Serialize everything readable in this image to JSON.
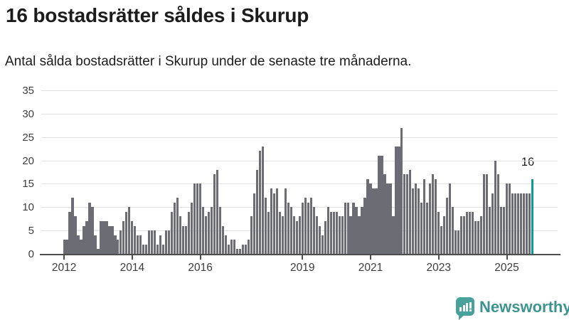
{
  "title": "16 bostadsrätter såldes i Skurup",
  "subtitle": "Antal sålda bostadsrätter i Skurup under de senaste tre månaderna.",
  "annotation": {
    "label": "16"
  },
  "branding": {
    "name": "Newsworthy"
  },
  "colors": {
    "bar": "#6c6c74",
    "highlight": "#0c9b9b",
    "gridline": "#e2e2e2",
    "axis": "#4d4d4d",
    "text": "#1c1c1c",
    "brand_teal": "#3d948e"
  },
  "chart_data": {
    "type": "bar",
    "title": "16 bostadsrätter såldes i Skurup",
    "subtitle": "Antal sålda bostadsrätter i Skurup under de senaste tre månaderna.",
    "ylabel": "",
    "xlabel": "",
    "ylim": [
      0,
      35
    ],
    "grid": true,
    "y_ticks": [
      0,
      5,
      10,
      15,
      20,
      25,
      30,
      35
    ],
    "x_tick_labels": [
      "2012",
      "2014",
      "2016",
      "2019",
      "2021",
      "2023",
      "2025"
    ],
    "x_tick_month_index": [
      0,
      24,
      48,
      84,
      108,
      132,
      156
    ],
    "start_month": "2012-01",
    "end_month": "2025-10",
    "highlight_index": 165,
    "highlight_value": 16,
    "highlight_label": "16",
    "values": [
      3,
      3,
      9,
      12,
      8,
      4,
      3,
      6,
      7,
      11,
      10,
      4,
      1,
      7,
      7,
      7,
      6,
      6,
      4,
      3,
      5,
      7,
      9,
      10,
      7,
      6,
      4,
      4,
      2,
      2,
      5,
      5,
      5,
      2,
      4,
      2,
      5,
      5,
      9,
      11,
      12,
      8,
      6,
      6,
      9,
      11,
      15,
      15,
      15,
      10,
      8,
      9,
      10,
      17,
      18,
      10,
      6,
      4,
      2,
      3,
      3,
      1,
      1,
      2,
      2,
      3,
      8,
      13,
      18,
      22,
      23,
      12,
      9,
      14,
      13,
      14,
      9,
      8,
      14,
      11,
      10,
      8,
      7,
      8,
      11,
      12,
      11,
      12,
      10,
      8,
      6,
      4,
      7,
      10,
      9,
      9,
      9,
      8,
      8,
      11,
      11,
      8,
      11,
      10,
      8,
      10,
      12,
      16,
      15,
      14,
      14,
      21,
      21,
      17,
      15,
      15,
      8,
      23,
      23,
      27,
      17,
      17,
      18,
      14,
      15,
      14,
      11,
      16,
      11,
      15,
      17,
      16,
      9,
      6,
      8,
      12,
      15,
      10,
      5,
      5,
      8,
      8,
      9,
      9,
      9,
      7,
      7,
      8,
      17,
      17,
      10,
      13,
      20,
      17,
      10,
      10,
      15,
      15,
      13,
      13,
      13,
      13,
      13,
      13,
      13,
      16
    ]
  }
}
